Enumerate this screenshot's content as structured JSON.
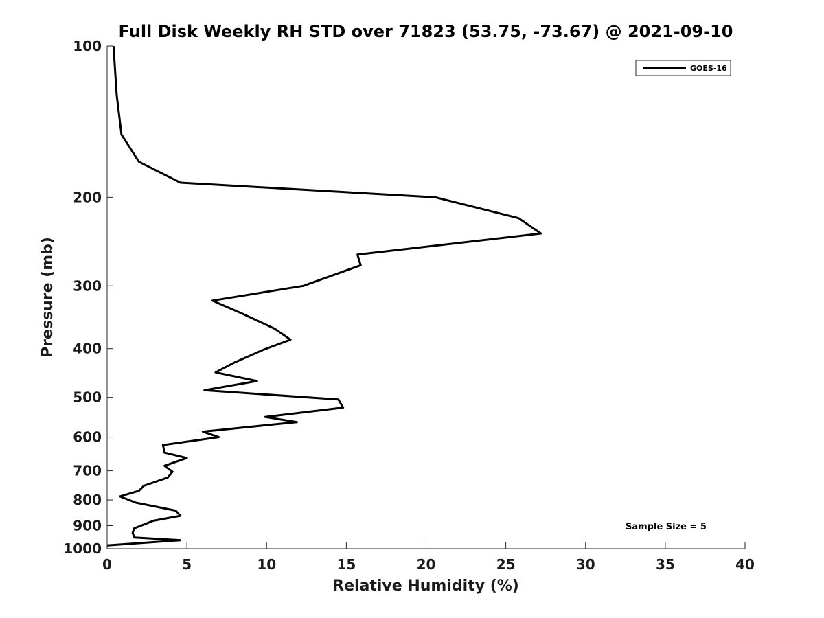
{
  "chart_data": {
    "type": "line",
    "title": "Full Disk Weekly RH STD over 71823 (53.75, -73.67) @ 2021-09-10",
    "xlabel": "Relative Humidity (%)",
    "ylabel": "Pressure (mb)",
    "xlim": [
      0,
      40
    ],
    "ylim": [
      100,
      1000
    ],
    "yscale": "log",
    "yreversed": true,
    "xticks": [
      "0",
      "5",
      "10",
      "15",
      "20",
      "25",
      "30",
      "35",
      "40"
    ],
    "yticks": [
      "100",
      "200",
      "300",
      "400",
      "500",
      "600",
      "700",
      "800",
      "900",
      "1000"
    ],
    "legend": {
      "placement": "top-right",
      "entries": [
        "GOES-16"
      ]
    },
    "annotation": "Sample Size = 5",
    "grid": false,
    "series": [
      {
        "name": "GOES-16",
        "color": "#000000",
        "points": [
          [
            0.4,
            100
          ],
          [
            0.6,
            125
          ],
          [
            0.9,
            150
          ],
          [
            2.0,
            170
          ],
          [
            4.6,
            187
          ],
          [
            20.6,
            200
          ],
          [
            25.8,
            220
          ],
          [
            27.2,
            236
          ],
          [
            15.7,
            260
          ],
          [
            15.9,
            273
          ],
          [
            12.3,
            300
          ],
          [
            6.6,
            321
          ],
          [
            8.4,
            340
          ],
          [
            10.5,
            365
          ],
          [
            11.5,
            384
          ],
          [
            9.8,
            402
          ],
          [
            8.0,
            426
          ],
          [
            6.8,
            446
          ],
          [
            9.4,
            464
          ],
          [
            6.1,
            484
          ],
          [
            14.5,
            505
          ],
          [
            14.8,
            524
          ],
          [
            9.9,
            547
          ],
          [
            11.9,
            560
          ],
          [
            6.0,
            585
          ],
          [
            7.0,
            600
          ],
          [
            3.5,
            622
          ],
          [
            3.6,
            644
          ],
          [
            5.0,
            660
          ],
          [
            3.6,
            684
          ],
          [
            4.1,
            703
          ],
          [
            3.8,
            722
          ],
          [
            2.3,
            750
          ],
          [
            2.0,
            767
          ],
          [
            0.8,
            787
          ],
          [
            1.8,
            810
          ],
          [
            4.3,
            840
          ],
          [
            4.6,
            860
          ],
          [
            2.9,
            880
          ],
          [
            1.7,
            911
          ],
          [
            1.6,
            930
          ],
          [
            1.7,
            950
          ],
          [
            4.6,
            962
          ],
          [
            0.0,
            985
          ]
        ]
      }
    ]
  }
}
